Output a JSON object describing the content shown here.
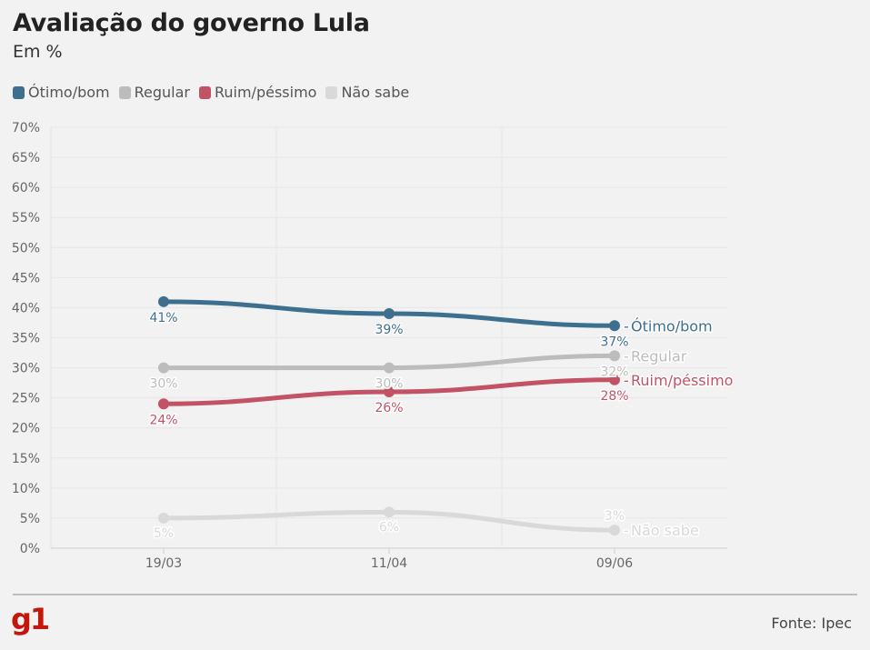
{
  "title": "Avaliação do governo Lula",
  "subtitle": "Em %",
  "source": "Fonte: Ipec",
  "logo": "g1",
  "chart_data": {
    "type": "line",
    "categories": [
      "19/03",
      "11/04",
      "09/06"
    ],
    "ylim": [
      0,
      70
    ],
    "yticks": [
      "0%",
      "5%",
      "10%",
      "15%",
      "20%",
      "25%",
      "30%",
      "35%",
      "40%",
      "45%",
      "50%",
      "55%",
      "60%",
      "65%",
      "70%"
    ],
    "grid": true,
    "legend_position": "top-left",
    "series": [
      {
        "name": "Ótimo/bom",
        "color": "#3d6f8e",
        "values": [
          41,
          39,
          37
        ],
        "labels": [
          "41%",
          "39%",
          "37%"
        ]
      },
      {
        "name": "Regular",
        "color": "#bcbcbc",
        "values": [
          30,
          30,
          32
        ],
        "labels": [
          "30%",
          "30%",
          "32%"
        ]
      },
      {
        "name": "Ruim/péssimo",
        "color": "#c25364",
        "values": [
          24,
          26,
          28
        ],
        "labels": [
          "24%",
          "26%",
          "28%"
        ]
      },
      {
        "name": "Não sabe",
        "color": "#d9d9d9",
        "values": [
          5,
          6,
          3
        ],
        "labels": [
          "5%",
          "6%",
          "3%"
        ]
      }
    ]
  }
}
